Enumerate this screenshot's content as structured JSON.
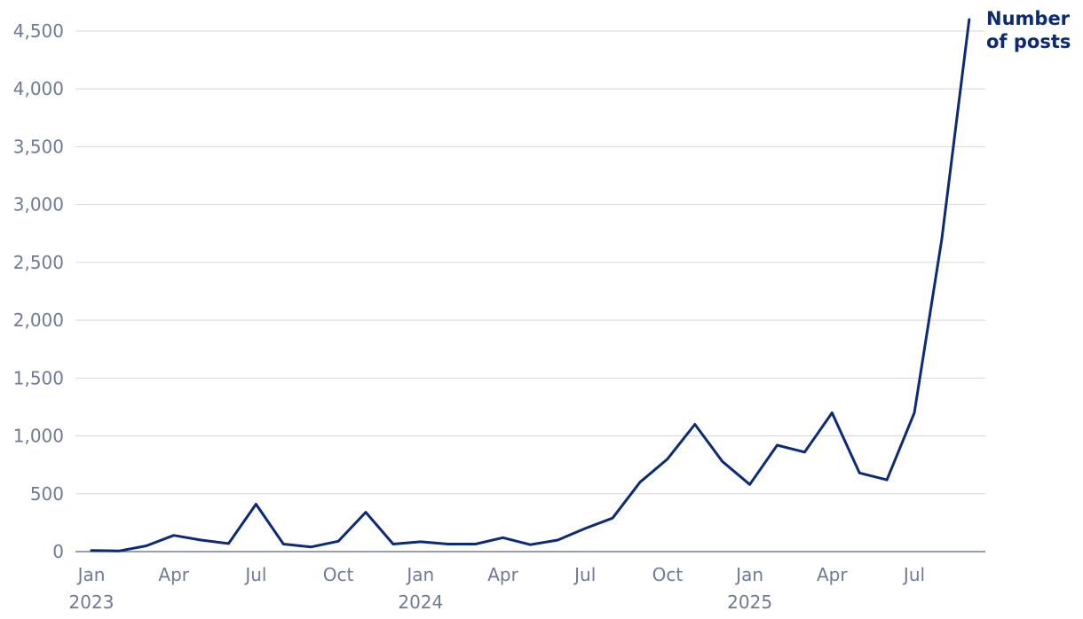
{
  "chart_data": {
    "type": "line",
    "title": "",
    "xlabel": "",
    "ylabel": "",
    "ylim": [
      0,
      4500
    ],
    "y_ticks": [
      "0",
      "500",
      "1,000",
      "1,500",
      "2,000",
      "2,500",
      "3,000",
      "3,500",
      "4,000",
      "4,500"
    ],
    "y_tick_values": [
      0,
      500,
      1000,
      1500,
      2000,
      2500,
      3000,
      3500,
      4000,
      4500
    ],
    "x_ticks": [
      {
        "month": "Jan",
        "year": "2023",
        "date": "2023-01"
      },
      {
        "month": "Apr",
        "year": "",
        "date": "2023-04"
      },
      {
        "month": "Jul",
        "year": "",
        "date": "2023-07"
      },
      {
        "month": "Oct",
        "year": "",
        "date": "2023-10"
      },
      {
        "month": "Jan",
        "year": "2024",
        "date": "2024-01"
      },
      {
        "month": "Apr",
        "year": "",
        "date": "2024-04"
      },
      {
        "month": "Jul",
        "year": "",
        "date": "2024-07"
      },
      {
        "month": "Oct",
        "year": "",
        "date": "2024-10"
      },
      {
        "month": "Jan",
        "year": "2025",
        "date": "2025-01"
      },
      {
        "month": "Apr",
        "year": "",
        "date": "2025-04"
      },
      {
        "month": "Jul",
        "year": "",
        "date": "2025-07"
      }
    ],
    "grid": true,
    "x": [
      "2023-01",
      "2023-02",
      "2023-03",
      "2023-04",
      "2023-05",
      "2023-06",
      "2023-07",
      "2023-08",
      "2023-09",
      "2023-10",
      "2023-11",
      "2023-12",
      "2024-01",
      "2024-02",
      "2024-03",
      "2024-04",
      "2024-05",
      "2024-06",
      "2024-07",
      "2024-08",
      "2024-09",
      "2024-10",
      "2024-11",
      "2024-12",
      "2025-01",
      "2025-02",
      "2025-03",
      "2025-04",
      "2025-05",
      "2025-06",
      "2025-07",
      "2025-08",
      "2025-09"
    ],
    "series": [
      {
        "name": "Number of posts",
        "color": "#0c2a78",
        "values": [
          10,
          5,
          50,
          140,
          100,
          70,
          410,
          65,
          40,
          90,
          340,
          65,
          85,
          65,
          65,
          120,
          60,
          100,
          200,
          290,
          600,
          800,
          1100,
          780,
          580,
          920,
          860,
          1200,
          680,
          620,
          1200,
          2700,
          4600
        ]
      }
    ]
  }
}
